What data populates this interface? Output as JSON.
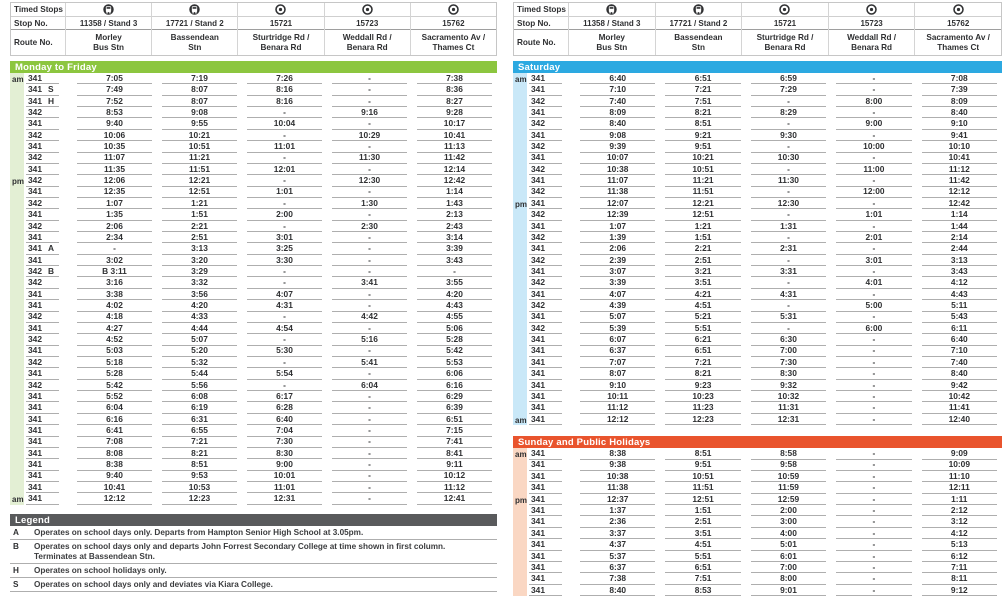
{
  "colors": {
    "weekday": "#8cc63f",
    "weekday_light": "#e3efd4",
    "saturday": "#2ca9e1",
    "saturday_light": "#c9e8f8",
    "sunday": "#e9542d",
    "sunday_light": "#fad7c3",
    "legend_bar": "#595a5c",
    "rule": "#aeaeae",
    "text": "#2f3032"
  },
  "stops_header": {
    "timed_stops_label": "Timed Stops",
    "stop_no_label": "Stop No.",
    "route_no_label": "Route No.",
    "stops": [
      {
        "icon": "bus-icon",
        "stop_no": "11358 / Stand 3",
        "name": [
          "Morley",
          "Bus Stn"
        ]
      },
      {
        "icon": "bus-icon",
        "stop_no": "17721 / Stand 2",
        "name": [
          "Bassendean",
          "Stn"
        ]
      },
      {
        "icon": "stop-icon",
        "stop_no": "15721",
        "name": [
          "Sturtridge Rd /",
          "Benara Rd"
        ]
      },
      {
        "icon": "stop-icon",
        "stop_no": "15723",
        "name": [
          "Weddall Rd /",
          "Benara Rd"
        ]
      },
      {
        "icon": "stop-icon",
        "stop_no": "15762",
        "name": [
          "Sacramento Av /",
          "Thames Ct"
        ]
      }
    ]
  },
  "timetables": [
    {
      "id": "weekday",
      "title": "Monday to Friday",
      "rows": [
        {
          "period": "am",
          "route": "341",
          "times": [
            "7:05",
            "7:19",
            "7:26",
            "-",
            "7:38"
          ]
        },
        {
          "route": "341",
          "note": "S",
          "times": [
            "7:49",
            "8:07",
            "8:16",
            "-",
            "8:36"
          ]
        },
        {
          "route": "341",
          "note": "H",
          "times": [
            "7:52",
            "8:07",
            "8:16",
            "-",
            "8:27"
          ]
        },
        {
          "route": "342",
          "times": [
            "8:53",
            "9:08",
            "-",
            "9:16",
            "9:28"
          ]
        },
        {
          "route": "341",
          "times": [
            "9:40",
            "9:55",
            "10:04",
            "-",
            "10:17"
          ]
        },
        {
          "route": "342",
          "times": [
            "10:06",
            "10:21",
            "-",
            "10:29",
            "10:41"
          ]
        },
        {
          "route": "341",
          "times": [
            "10:35",
            "10:51",
            "11:01",
            "-",
            "11:13"
          ]
        },
        {
          "route": "342",
          "times": [
            "11:07",
            "11:21",
            "-",
            "11:30",
            "11:42"
          ]
        },
        {
          "route": "341",
          "times": [
            "11:35",
            "11:51",
            "12:01",
            "-",
            "12:14"
          ]
        },
        {
          "period": "pm",
          "route": "342",
          "times": [
            "12:06",
            "12:21",
            "-",
            "12:30",
            "12:42"
          ]
        },
        {
          "route": "341",
          "times": [
            "12:35",
            "12:51",
            "1:01",
            "-",
            "1:14"
          ]
        },
        {
          "route": "342",
          "times": [
            "1:07",
            "1:21",
            "-",
            "1:30",
            "1:43"
          ]
        },
        {
          "route": "341",
          "times": [
            "1:35",
            "1:51",
            "2:00",
            "-",
            "2:13"
          ]
        },
        {
          "route": "342",
          "times": [
            "2:06",
            "2:21",
            "-",
            "2:30",
            "2:43"
          ]
        },
        {
          "route": "341",
          "times": [
            "2:34",
            "2:51",
            "3:01",
            "-",
            "3:14"
          ]
        },
        {
          "route": "341",
          "note": "A",
          "times": [
            "-",
            "3:13",
            "3:25",
            "-",
            "3:39"
          ]
        },
        {
          "route": "341",
          "times": [
            "3:02",
            "3:20",
            "3:30",
            "-",
            "3:43"
          ]
        },
        {
          "route": "342",
          "note": "B",
          "times": [
            "B 3:11",
            "3:29",
            "-",
            "-",
            "-"
          ]
        },
        {
          "route": "342",
          "times": [
            "3:16",
            "3:32",
            "-",
            "3:41",
            "3:55"
          ]
        },
        {
          "route": "341",
          "times": [
            "3:38",
            "3:56",
            "4:07",
            "-",
            "4:20"
          ]
        },
        {
          "route": "341",
          "times": [
            "4:02",
            "4:20",
            "4:31",
            "-",
            "4:43"
          ]
        },
        {
          "route": "342",
          "times": [
            "4:18",
            "4:33",
            "-",
            "4:42",
            "4:55"
          ]
        },
        {
          "route": "341",
          "times": [
            "4:27",
            "4:44",
            "4:54",
            "-",
            "5:06"
          ]
        },
        {
          "route": "342",
          "times": [
            "4:52",
            "5:07",
            "-",
            "5:16",
            "5:28"
          ]
        },
        {
          "route": "341",
          "times": [
            "5:03",
            "5:20",
            "5:30",
            "-",
            "5:42"
          ]
        },
        {
          "route": "342",
          "times": [
            "5:18",
            "5:32",
            "-",
            "5:41",
            "5:53"
          ]
        },
        {
          "route": "341",
          "times": [
            "5:28",
            "5:44",
            "5:54",
            "-",
            "6:06"
          ]
        },
        {
          "route": "342",
          "times": [
            "5:42",
            "5:56",
            "-",
            "6:04",
            "6:16"
          ]
        },
        {
          "route": "341",
          "times": [
            "5:52",
            "6:08",
            "6:17",
            "-",
            "6:29"
          ]
        },
        {
          "route": "341",
          "times": [
            "6:04",
            "6:19",
            "6:28",
            "-",
            "6:39"
          ]
        },
        {
          "route": "341",
          "times": [
            "6:16",
            "6:31",
            "6:40",
            "-",
            "6:51"
          ]
        },
        {
          "route": "341",
          "times": [
            "6:41",
            "6:55",
            "7:04",
            "-",
            "7:15"
          ]
        },
        {
          "route": "341",
          "times": [
            "7:08",
            "7:21",
            "7:30",
            "-",
            "7:41"
          ]
        },
        {
          "route": "341",
          "times": [
            "8:08",
            "8:21",
            "8:30",
            "-",
            "8:41"
          ]
        },
        {
          "route": "341",
          "times": [
            "8:38",
            "8:51",
            "9:00",
            "-",
            "9:11"
          ]
        },
        {
          "route": "341",
          "times": [
            "9:40",
            "9:53",
            "10:01",
            "-",
            "10:12"
          ]
        },
        {
          "route": "341",
          "times": [
            "10:41",
            "10:53",
            "11:01",
            "-",
            "11:12"
          ]
        },
        {
          "period": "am",
          "route": "341",
          "times": [
            "12:12",
            "12:23",
            "12:31",
            "-",
            "12:41"
          ]
        }
      ]
    },
    {
      "id": "saturday",
      "title": "Saturday",
      "rows": [
        {
          "period": "am",
          "route": "341",
          "times": [
            "6:40",
            "6:51",
            "6:59",
            "-",
            "7:08"
          ]
        },
        {
          "route": "341",
          "times": [
            "7:10",
            "7:21",
            "7:29",
            "-",
            "7:39"
          ]
        },
        {
          "route": "342",
          "times": [
            "7:40",
            "7:51",
            "-",
            "8:00",
            "8:09"
          ]
        },
        {
          "route": "341",
          "times": [
            "8:09",
            "8:21",
            "8:29",
            "-",
            "8:40"
          ]
        },
        {
          "route": "342",
          "times": [
            "8:40",
            "8:51",
            "-",
            "9:00",
            "9:10"
          ]
        },
        {
          "route": "341",
          "times": [
            "9:08",
            "9:21",
            "9:30",
            "-",
            "9:41"
          ]
        },
        {
          "route": "342",
          "times": [
            "9:39",
            "9:51",
            "-",
            "10:00",
            "10:10"
          ]
        },
        {
          "route": "341",
          "times": [
            "10:07",
            "10:21",
            "10:30",
            "-",
            "10:41"
          ]
        },
        {
          "route": "342",
          "times": [
            "10:38",
            "10:51",
            "-",
            "11:00",
            "11:12"
          ]
        },
        {
          "route": "341",
          "times": [
            "11:07",
            "11:21",
            "11:30",
            "-",
            "11:42"
          ]
        },
        {
          "route": "342",
          "times": [
            "11:38",
            "11:51",
            "-",
            "12:00",
            "12:12"
          ]
        },
        {
          "period": "pm",
          "route": "341",
          "times": [
            "12:07",
            "12:21",
            "12:30",
            "-",
            "12:42"
          ]
        },
        {
          "route": "342",
          "times": [
            "12:39",
            "12:51",
            "-",
            "1:01",
            "1:14"
          ]
        },
        {
          "route": "341",
          "times": [
            "1:07",
            "1:21",
            "1:31",
            "-",
            "1:44"
          ]
        },
        {
          "route": "342",
          "times": [
            "1:39",
            "1:51",
            "-",
            "2:01",
            "2:14"
          ]
        },
        {
          "route": "341",
          "times": [
            "2:06",
            "2:21",
            "2:31",
            "-",
            "2:44"
          ]
        },
        {
          "route": "342",
          "times": [
            "2:39",
            "2:51",
            "-",
            "3:01",
            "3:13"
          ]
        },
        {
          "route": "341",
          "times": [
            "3:07",
            "3:21",
            "3:31",
            "-",
            "3:43"
          ]
        },
        {
          "route": "342",
          "times": [
            "3:39",
            "3:51",
            "-",
            "4:01",
            "4:12"
          ]
        },
        {
          "route": "341",
          "times": [
            "4:07",
            "4:21",
            "4:31",
            "-",
            "4:43"
          ]
        },
        {
          "route": "342",
          "times": [
            "4:39",
            "4:51",
            "-",
            "5:00",
            "5:11"
          ]
        },
        {
          "route": "341",
          "times": [
            "5:07",
            "5:21",
            "5:31",
            "-",
            "5:43"
          ]
        },
        {
          "route": "342",
          "times": [
            "5:39",
            "5:51",
            "-",
            "6:00",
            "6:11"
          ]
        },
        {
          "route": "341",
          "times": [
            "6:07",
            "6:21",
            "6:30",
            "-",
            "6:40"
          ]
        },
        {
          "route": "341",
          "times": [
            "6:37",
            "6:51",
            "7:00",
            "-",
            "7:10"
          ]
        },
        {
          "route": "341",
          "times": [
            "7:07",
            "7:21",
            "7:30",
            "-",
            "7:40"
          ]
        },
        {
          "route": "341",
          "times": [
            "8:07",
            "8:21",
            "8:30",
            "-",
            "8:40"
          ]
        },
        {
          "route": "341",
          "times": [
            "9:10",
            "9:23",
            "9:32",
            "-",
            "9:42"
          ]
        },
        {
          "route": "341",
          "times": [
            "10:11",
            "10:23",
            "10:32",
            "-",
            "10:42"
          ]
        },
        {
          "route": "341",
          "times": [
            "11:12",
            "11:23",
            "11:31",
            "-",
            "11:41"
          ]
        },
        {
          "period": "am",
          "route": "341",
          "times": [
            "12:12",
            "12:23",
            "12:31",
            "-",
            "12:40"
          ]
        }
      ]
    },
    {
      "id": "sunday",
      "title": "Sunday and Public Holidays",
      "rows": [
        {
          "period": "am",
          "route": "341",
          "times": [
            "8:38",
            "8:51",
            "8:58",
            "-",
            "9:09"
          ]
        },
        {
          "route": "341",
          "times": [
            "9:38",
            "9:51",
            "9:58",
            "-",
            "10:09"
          ]
        },
        {
          "route": "341",
          "times": [
            "10:38",
            "10:51",
            "10:59",
            "-",
            "11:10"
          ]
        },
        {
          "route": "341",
          "times": [
            "11:38",
            "11:51",
            "11:59",
            "-",
            "12:11"
          ]
        },
        {
          "period": "pm",
          "route": "341",
          "times": [
            "12:37",
            "12:51",
            "12:59",
            "-",
            "1:11"
          ]
        },
        {
          "route": "341",
          "times": [
            "1:37",
            "1:51",
            "2:00",
            "-",
            "2:12"
          ]
        },
        {
          "route": "341",
          "times": [
            "2:36",
            "2:51",
            "3:00",
            "-",
            "3:12"
          ]
        },
        {
          "route": "341",
          "times": [
            "3:37",
            "3:51",
            "4:00",
            "-",
            "4:12"
          ]
        },
        {
          "route": "341",
          "times": [
            "4:37",
            "4:51",
            "5:01",
            "-",
            "5:13"
          ]
        },
        {
          "route": "341",
          "times": [
            "5:37",
            "5:51",
            "6:01",
            "-",
            "6:12"
          ]
        },
        {
          "route": "341",
          "times": [
            "6:37",
            "6:51",
            "7:00",
            "-",
            "7:11"
          ]
        },
        {
          "route": "341",
          "times": [
            "7:38",
            "7:51",
            "8:00",
            "-",
            "8:11"
          ]
        },
        {
          "route": "341",
          "times": [
            "8:40",
            "8:53",
            "9:01",
            "-",
            "9:12"
          ]
        }
      ]
    }
  ],
  "legend": {
    "title": "Legend",
    "items": [
      {
        "code": "A",
        "lines": [
          "Operates on school days only. Departs from Hampton Senior High School at 3.05pm."
        ]
      },
      {
        "code": "B",
        "lines": [
          "Operates on school days only and departs John Forrest Secondary College at time shown in first column.",
          "Terminates at Bassendean Stn."
        ]
      },
      {
        "code": "H",
        "lines": [
          "Operates on school holidays only."
        ]
      },
      {
        "code": "S",
        "lines": [
          "Operates on school days only and deviates via Kiara College."
        ]
      }
    ]
  }
}
